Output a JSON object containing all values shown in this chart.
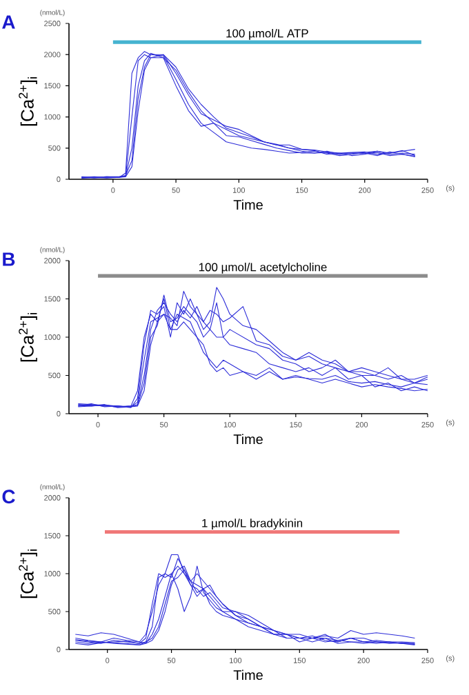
{
  "chart_data": [
    {
      "type": "line",
      "title": "A",
      "xlabel": "Time",
      "ylabel": "[Ca$^{2+}$]$_{i}$",
      "annotations": [
        "(nmol/L)",
        "(s)"
      ],
      "xlim": [
        -35,
        250
      ],
      "ylim": [
        0,
        2500
      ],
      "xticks": [
        0,
        50,
        100,
        150,
        200,
        250
      ],
      "yticks": [
        0,
        500,
        1000,
        1500,
        2000,
        2500
      ],
      "grid": false,
      "legend": false,
      "series": [
        {
          "name": "100 µmol/L ATP",
          "color": "#45b3d0",
          "x": [
            0,
            245
          ],
          "values": [
            2200,
            2200
          ]
        },
        {
          "color": "#2b2bd8",
          "x": [
            -25,
            -15,
            -5,
            5,
            10,
            15,
            20,
            25,
            30,
            40,
            50,
            60,
            70,
            80,
            90,
            100,
            110,
            120,
            130,
            140,
            150,
            160,
            170,
            180,
            190,
            200,
            210,
            220,
            230,
            240
          ],
          "values": [
            30,
            40,
            30,
            30,
            100,
            1700,
            1950,
            2050,
            2000,
            1980,
            1600,
            1200,
            900,
            750,
            600,
            550,
            500,
            480,
            450,
            420,
            430,
            450,
            420,
            380,
            400,
            430,
            450,
            400,
            420,
            400
          ]
        },
        {
          "color": "#2b2bd8",
          "x": [
            -25,
            -15,
            -5,
            5,
            10,
            15,
            20,
            25,
            30,
            40,
            50,
            60,
            70,
            80,
            90,
            100,
            110,
            120,
            130,
            140,
            150,
            160,
            170,
            180,
            190,
            200,
            210,
            220,
            230,
            240
          ],
          "values": [
            20,
            30,
            40,
            40,
            50,
            1000,
            1900,
            2000,
            1950,
            2000,
            1700,
            1350,
            1050,
            950,
            850,
            800,
            700,
            600,
            550,
            550,
            480,
            470,
            440,
            420,
            430,
            440,
            400,
            420,
            450,
            480
          ]
        },
        {
          "color": "#2b2bd8",
          "x": [
            -25,
            -15,
            -5,
            5,
            10,
            15,
            20,
            25,
            30,
            40,
            50,
            60,
            70,
            80,
            90,
            100,
            110,
            120,
            130,
            140,
            150,
            160,
            170,
            180,
            190,
            200,
            210,
            220,
            230,
            240
          ],
          "values": [
            40,
            30,
            20,
            30,
            50,
            500,
            1500,
            1900,
            2020,
            1950,
            1750,
            1400,
            1100,
            900,
            800,
            700,
            650,
            600,
            550,
            500,
            450,
            420,
            430,
            400,
            420,
            410,
            430,
            380,
            400,
            370
          ]
        },
        {
          "color": "#2b2bd8",
          "x": [
            -25,
            -15,
            -5,
            5,
            10,
            15,
            20,
            25,
            30,
            40,
            50,
            60,
            70,
            80,
            90,
            100,
            110,
            120,
            130,
            140,
            150,
            160,
            170,
            180,
            190,
            200,
            210,
            220,
            230,
            240
          ],
          "values": [
            30,
            20,
            30,
            40,
            60,
            300,
            1300,
            1800,
            2000,
            2000,
            1800,
            1450,
            1200,
            1000,
            820,
            750,
            680,
            600,
            560,
            500,
            480,
            460,
            400,
            420,
            380,
            400,
            450,
            420,
            460,
            380
          ]
        },
        {
          "color": "#2b2bd8",
          "x": [
            -25,
            -15,
            -5,
            5,
            10,
            15,
            20,
            25,
            30,
            40,
            50,
            60,
            70,
            80,
            90,
            100,
            110,
            120,
            130,
            140,
            150,
            160,
            170,
            180,
            190,
            200,
            210,
            220,
            230,
            240
          ],
          "values": [
            20,
            30,
            40,
            30,
            40,
            200,
            1100,
            1750,
            1950,
            1950,
            1500,
            1100,
            850,
            900,
            700,
            680,
            620,
            560,
            500,
            460,
            420,
            420,
            450,
            400,
            420,
            420,
            380,
            440,
            400,
            360
          ]
        }
      ]
    },
    {
      "type": "line",
      "title": "B",
      "xlabel": "Time",
      "ylabel": "[Ca$^{2+}$]$_{i}$",
      "annotations": [
        "(nmol/L)",
        "(s)"
      ],
      "xlim": [
        -22,
        250
      ],
      "ylim": [
        0,
        2000
      ],
      "xticks": [
        0,
        50,
        100,
        150,
        200,
        250
      ],
      "yticks": [
        0,
        500,
        1000,
        1500,
        2000
      ],
      "grid": false,
      "legend": false,
      "series": [
        {
          "name": "100 µmol/L acetylcholine",
          "color": "#8c8c8c",
          "x": [
            0,
            250
          ],
          "values": [
            1800,
            1800
          ]
        },
        {
          "color": "#2b2bd8",
          "x": [
            -15,
            -5,
            5,
            15,
            25,
            30,
            35,
            40,
            45,
            50,
            55,
            60,
            65,
            70,
            75,
            80,
            85,
            90,
            95,
            100,
            110,
            120,
            130,
            140,
            150,
            160,
            170,
            180,
            190,
            200,
            210,
            220,
            230,
            240,
            250
          ],
          "values": [
            120,
            110,
            100,
            90,
            100,
            300,
            1000,
            1300,
            1200,
            1500,
            1100,
            1300,
            1250,
            1200,
            1000,
            800,
            700,
            600,
            700,
            650,
            550,
            500,
            600,
            450,
            480,
            460,
            450,
            500,
            420,
            400,
            420,
            380,
            350,
            400,
            380
          ]
        },
        {
          "color": "#2b2bd8",
          "x": [
            -15,
            -5,
            5,
            15,
            25,
            30,
            35,
            40,
            45,
            50,
            55,
            60,
            65,
            70,
            75,
            80,
            85,
            90,
            95,
            100,
            110,
            120,
            130,
            140,
            150,
            160,
            170,
            180,
            190,
            200,
            210,
            220,
            230,
            240,
            250
          ],
          "values": [
            100,
            130,
            90,
            100,
            80,
            200,
            900,
            1350,
            1300,
            1400,
            1000,
            1450,
            1300,
            1500,
            1300,
            1200,
            1100,
            1000,
            1000,
            900,
            850,
            800,
            650,
            600,
            550,
            600,
            500,
            600,
            450,
            500,
            350,
            400,
            300,
            350,
            300
          ]
        },
        {
          "color": "#2b2bd8",
          "x": [
            -15,
            -5,
            5,
            15,
            25,
            30,
            35,
            40,
            45,
            50,
            55,
            60,
            65,
            70,
            75,
            80,
            85,
            90,
            95,
            100,
            110,
            120,
            130,
            140,
            150,
            160,
            170,
            180,
            190,
            200,
            210,
            220,
            230,
            240,
            250
          ],
          "values": [
            110,
            100,
            120,
            80,
            90,
            150,
            700,
            1200,
            1250,
            1300,
            1250,
            1150,
            1600,
            1400,
            1300,
            1100,
            1200,
            1650,
            1500,
            1300,
            1150,
            1100,
            950,
            800,
            700,
            750,
            650,
            600,
            550,
            550,
            500,
            600,
            450,
            400,
            480
          ]
        },
        {
          "color": "#2b2bd8",
          "x": [
            -15,
            -5,
            5,
            15,
            25,
            30,
            35,
            40,
            45,
            50,
            55,
            60,
            65,
            70,
            75,
            80,
            85,
            90,
            95,
            100,
            110,
            120,
            130,
            140,
            150,
            160,
            170,
            180,
            190,
            200,
            210,
            220,
            230,
            240,
            250
          ],
          "values": [
            130,
            120,
            110,
            100,
            90,
            120,
            500,
            1100,
            1350,
            1450,
            1300,
            1200,
            1350,
            1250,
            1400,
            1200,
            1350,
            1300,
            1200,
            1250,
            1400,
            950,
            900,
            750,
            700,
            800,
            700,
            650,
            550,
            500,
            500,
            450,
            500,
            400,
            450
          ]
        },
        {
          "color": "#2b2bd8",
          "x": [
            -15,
            -5,
            5,
            15,
            25,
            30,
            35,
            40,
            45,
            50,
            55,
            60,
            65,
            70,
            75,
            80,
            85,
            90,
            95,
            100,
            110,
            120,
            130,
            140,
            150,
            160,
            170,
            180,
            190,
            200,
            210,
            220,
            230,
            240,
            250
          ],
          "values": [
            100,
            110,
            100,
            90,
            100,
            110,
            400,
            1000,
            1150,
            1550,
            1200,
            1250,
            1400,
            1300,
            1200,
            1000,
            1100,
            1450,
            1000,
            1100,
            1000,
            900,
            850,
            700,
            650,
            550,
            600,
            700,
            550,
            600,
            550,
            500,
            450,
            450,
            500
          ]
        },
        {
          "color": "#2b2bd8",
          "x": [
            -15,
            -5,
            5,
            15,
            25,
            30,
            35,
            40,
            45,
            50,
            55,
            60,
            65,
            70,
            75,
            80,
            85,
            90,
            95,
            100,
            110,
            120,
            130,
            140,
            150,
            160,
            170,
            180,
            190,
            200,
            210,
            220,
            230,
            240,
            250
          ],
          "values": [
            90,
            100,
            110,
            100,
            90,
            100,
            300,
            900,
            1200,
            1300,
            1100,
            1100,
            1200,
            1100,
            1000,
            900,
            650,
            550,
            600,
            500,
            550,
            450,
            550,
            450,
            500,
            450,
            400,
            450,
            400,
            350,
            380,
            350,
            330,
            300,
            320
          ]
        }
      ]
    },
    {
      "type": "line",
      "title": "C",
      "xlabel": "Time",
      "ylabel": "[Ca$^{2+}$]$_{i}$",
      "annotations": [
        "(nmol/L)",
        "(s)"
      ],
      "xlim": [
        -30,
        250
      ],
      "ylim": [
        0,
        2000
      ],
      "xticks": [
        0,
        50,
        100,
        150,
        200,
        250
      ],
      "yticks": [
        0,
        500,
        1000,
        1500,
        2000
      ],
      "grid": false,
      "legend": false,
      "series": [
        {
          "name": "1 µmol/L bradykinin",
          "color": "#f07878",
          "x": [
            -2,
            228
          ],
          "values": [
            1550,
            1550
          ]
        },
        {
          "color": "#2b2bd8",
          "x": [
            -25,
            -15,
            -5,
            5,
            15,
            25,
            30,
            35,
            40,
            45,
            50,
            55,
            60,
            65,
            70,
            75,
            80,
            85,
            90,
            100,
            110,
            120,
            130,
            140,
            150,
            160,
            170,
            180,
            190,
            200,
            210,
            220,
            230,
            240
          ],
          "values": [
            200,
            180,
            220,
            200,
            150,
            100,
            200,
            500,
            850,
            1000,
            1250,
            1250,
            1000,
            900,
            750,
            800,
            700,
            600,
            500,
            400,
            350,
            300,
            200,
            200,
            150,
            150,
            180,
            150,
            250,
            200,
            220,
            200,
            180,
            150
          ]
        },
        {
          "color": "#2b2bd8",
          "x": [
            -25,
            -15,
            -5,
            5,
            15,
            25,
            30,
            35,
            40,
            45,
            50,
            55,
            60,
            65,
            70,
            75,
            80,
            85,
            90,
            100,
            110,
            120,
            130,
            140,
            150,
            160,
            170,
            180,
            190,
            200,
            210,
            220,
            230,
            240
          ],
          "values": [
            120,
            100,
            80,
            120,
            100,
            80,
            150,
            600,
            1000,
            950,
            1000,
            1100,
            1000,
            850,
            800,
            700,
            750,
            650,
            550,
            500,
            450,
            350,
            250,
            200,
            200,
            150,
            200,
            100,
            150,
            150,
            100,
            100,
            80,
            70
          ]
        },
        {
          "color": "#2b2bd8",
          "x": [
            -25,
            -15,
            -5,
            5,
            15,
            25,
            30,
            35,
            40,
            45,
            50,
            55,
            60,
            65,
            70,
            75,
            80,
            85,
            90,
            100,
            110,
            120,
            130,
            140,
            150,
            160,
            170,
            180,
            190,
            200,
            210,
            220,
            230,
            240
          ],
          "values": [
            100,
            80,
            100,
            90,
            80,
            60,
            100,
            300,
            950,
            1000,
            950,
            1200,
            1050,
            900,
            850,
            800,
            850,
            700,
            600,
            450,
            400,
            300,
            250,
            150,
            150,
            150,
            100,
            120,
            100,
            100,
            80,
            100,
            80,
            80
          ]
        },
        {
          "color": "#2b2bd8",
          "x": [
            -25,
            -15,
            -5,
            5,
            15,
            25,
            30,
            35,
            40,
            45,
            50,
            55,
            60,
            65,
            70,
            75,
            80,
            85,
            90,
            100,
            110,
            120,
            130,
            140,
            150,
            160,
            170,
            180,
            190,
            200,
            210,
            220,
            230,
            240
          ],
          "values": [
            150,
            120,
            100,
            150,
            120,
            100,
            80,
            200,
            400,
            700,
            1000,
            800,
            500,
            700,
            1100,
            750,
            650,
            550,
            500,
            500,
            400,
            300,
            200,
            200,
            100,
            150,
            150,
            120,
            150,
            100,
            100,
            80,
            90,
            70
          ]
        },
        {
          "color": "#2b2bd8",
          "x": [
            -25,
            -15,
            -5,
            5,
            15,
            25,
            30,
            35,
            40,
            45,
            50,
            55,
            60,
            65,
            70,
            75,
            80,
            85,
            90,
            100,
            110,
            120,
            130,
            140,
            150,
            160,
            170,
            180,
            190,
            200,
            210,
            220,
            230,
            240
          ],
          "values": [
            80,
            60,
            90,
            100,
            110,
            80,
            100,
            150,
            300,
            600,
            900,
            950,
            1050,
            850,
            700,
            800,
            600,
            500,
            450,
            400,
            300,
            250,
            200,
            150,
            150,
            100,
            150,
            80,
            100,
            80,
            100,
            90,
            80,
            60
          ]
        },
        {
          "color": "#2b2bd8",
          "x": [
            -25,
            -15,
            -5,
            5,
            15,
            25,
            30,
            35,
            40,
            45,
            50,
            55,
            60,
            65,
            70,
            75,
            80,
            85,
            90,
            100,
            110,
            120,
            130,
            140,
            150,
            160,
            170,
            180,
            190,
            200,
            210,
            220,
            230,
            240
          ],
          "values": [
            130,
            110,
            100,
            80,
            70,
            60,
            80,
            120,
            250,
            500,
            850,
            1050,
            1100,
            900,
            1000,
            900,
            800,
            700,
            600,
            450,
            350,
            300,
            250,
            200,
            150,
            180,
            120,
            100,
            150,
            100,
            120,
            100,
            100,
            90
          ]
        }
      ]
    }
  ]
}
